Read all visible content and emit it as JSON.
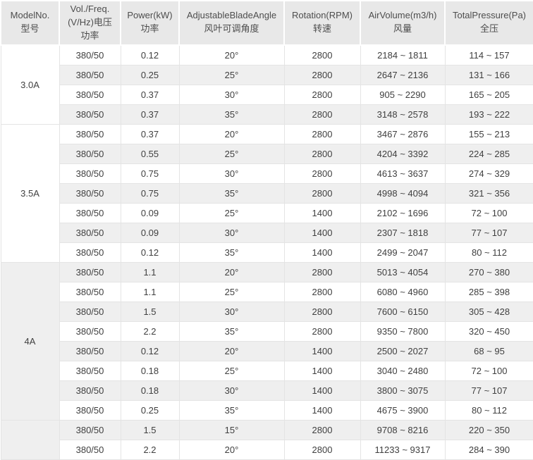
{
  "colors": {
    "header_bg": "#e8e8e8",
    "row_alt_bg": "#efefef",
    "row_bg": "#ffffff",
    "border": "#e4e4e4",
    "header_text": "#4d4d4d",
    "cell_text": "#404040"
  },
  "table": {
    "columns": [
      {
        "key": "model",
        "lines": [
          "ModelNo.",
          "型号"
        ]
      },
      {
        "key": "voltage-freq",
        "lines": [
          "Vol./Freq.",
          "(V/Hz)电压",
          "功率"
        ]
      },
      {
        "key": "power",
        "lines": [
          "Power(kW)",
          "功率"
        ]
      },
      {
        "key": "blade-angle",
        "lines": [
          "AdjustableBladeAngle",
          "风叶可调角度"
        ]
      },
      {
        "key": "rotation",
        "lines": [
          "Rotation(RPM)",
          "转速"
        ]
      },
      {
        "key": "air-volume",
        "lines": [
          "AirVolume(m3/h)",
          "风量"
        ]
      },
      {
        "key": "total-pressure",
        "lines": [
          "TotalPressure(Pa)",
          "全压"
        ]
      }
    ],
    "groups": [
      {
        "model": "3.0A",
        "rows": [
          [
            "380/50",
            "0.12",
            "20°",
            "2800",
            "2184 ~ 1811",
            "114 ~ 157"
          ],
          [
            "380/50",
            "0.25",
            "25°",
            "2800",
            "2647 ~ 2136",
            "131 ~ 166"
          ],
          [
            "380/50",
            "0.37",
            "30°",
            "2800",
            "905 ~ 2290",
            "165 ~ 205"
          ],
          [
            "380/50",
            "0.37",
            "35°",
            "2800",
            "3148 ~ 2578",
            "193 ~ 222"
          ]
        ]
      },
      {
        "model": "3.5A",
        "rows": [
          [
            "380/50",
            "0.37",
            "20°",
            "2800",
            "3467 ~ 2876",
            "155 ~ 213"
          ],
          [
            "380/50",
            "0.55",
            "25°",
            "2800",
            "4204 ~ 3392",
            "224 ~ 285"
          ],
          [
            "380/50",
            "0.75",
            "30°",
            "2800",
            "4613 ~ 3637",
            "274 ~ 329"
          ],
          [
            "380/50",
            "0.75",
            "35°",
            "2800",
            "4998 ~ 4094",
            "321 ~ 356"
          ],
          [
            "380/50",
            "0.09",
            "25°",
            "1400",
            "2102 ~ 1696",
            "72 ~ 100"
          ],
          [
            "380/50",
            "0.09",
            "30°",
            "1400",
            "2307 ~ 1818",
            "77 ~ 107"
          ],
          [
            "380/50",
            "0.12",
            "35°",
            "1400",
            "2499 ~ 2047",
            "80 ~ 112"
          ]
        ]
      },
      {
        "model": "4A",
        "rows": [
          [
            "380/50",
            "1.1",
            "20°",
            "2800",
            "5013 ~ 4054",
            "270 ~ 380"
          ],
          [
            "380/50",
            "1.1",
            "25°",
            "2800",
            "6080 ~ 4960",
            "285 ~ 398"
          ],
          [
            "380/50",
            "1.5",
            "30°",
            "2800",
            "7600 ~ 6150",
            "305 ~ 428"
          ],
          [
            "380/50",
            "2.2",
            "35°",
            "2800",
            "9350 ~ 7800",
            "320 ~ 450"
          ],
          [
            "380/50",
            "0.12",
            "20°",
            "1400",
            "2500 ~ 2027",
            "68 ~ 95"
          ],
          [
            "380/50",
            "0.18",
            "25°",
            "1400",
            "3040 ~ 2480",
            "72 ~ 100"
          ],
          [
            "380/50",
            "0.18",
            "30°",
            "1400",
            "3800 ~ 3075",
            "77 ~ 107"
          ],
          [
            "380/50",
            "0.25",
            "35°",
            "1400",
            "4675 ~ 3900",
            "80 ~ 112"
          ]
        ]
      },
      {
        "model": "",
        "rows": [
          [
            "380/50",
            "1.5",
            "15°",
            "2800",
            "9708 ~ 8216",
            "220 ~ 350"
          ],
          [
            "380/50",
            "2.2",
            "20°",
            "2800",
            "11233 ~ 9317",
            "284 ~ 390"
          ]
        ]
      }
    ]
  }
}
